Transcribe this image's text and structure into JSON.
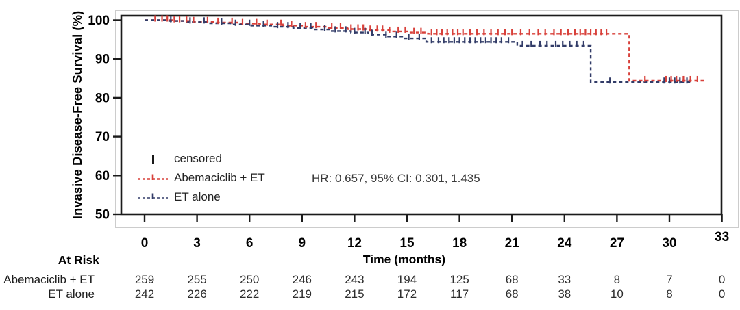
{
  "figure": {
    "y_axis_title": "Invasive Disease-Free Survival (%)",
    "x_axis_title": "Time (months)",
    "hr_annotation": "HR: 0.657, 95% CI: 0.301, 1.435",
    "legend": {
      "censored_label": "censored"
    },
    "at_risk": {
      "header": "At Risk"
    }
  },
  "chart_data": {
    "type": "line",
    "subtype": "kaplan_meier_step",
    "title": "",
    "xlabel": "Time (months)",
    "ylabel": "Invasive Disease-Free Survival (%)",
    "x_ticks": [
      0,
      3,
      6,
      9,
      12,
      15,
      18,
      21,
      24,
      27,
      30,
      33
    ],
    "y_ticks": [
      50,
      60,
      70,
      80,
      90,
      100
    ],
    "xlim": [
      -1.3,
      33
    ],
    "ylim": [
      50,
      101.5
    ],
    "grid": false,
    "legend_position": "inside lower-left",
    "annotation": "HR: 0.657, 95% CI: 0.301, 1.435",
    "series": [
      {
        "name": "Abemaciclib + ET",
        "color": "#d8403a",
        "line_style": "dashed",
        "steps": [
          [
            0,
            100
          ],
          [
            1.7,
            99.8
          ],
          [
            2.7,
            99.6
          ],
          [
            4,
            99.4
          ],
          [
            5.3,
            99.1
          ],
          [
            6.6,
            98.9
          ],
          [
            7.9,
            98.6
          ],
          [
            9.2,
            98.3
          ],
          [
            10.4,
            98.0
          ],
          [
            11.6,
            97.7
          ],
          [
            12.8,
            97.4
          ],
          [
            14,
            97.1
          ],
          [
            15.1,
            96.8
          ],
          [
            16.2,
            96.5
          ],
          [
            27.7,
            84.4
          ]
        ],
        "end_time": 32.0,
        "censor_times": [
          0.6,
          1.0,
          1.3,
          1.7,
          2.0,
          2.4,
          2.8,
          3.6,
          4.2,
          5.0,
          5.6,
          6.4,
          7.0,
          7.8,
          8.4,
          9.2,
          9.8,
          10.7,
          11.2,
          11.8,
          12.2,
          12.5,
          12.9,
          13.3,
          13.6,
          14.0,
          14.5,
          14.9,
          15.4,
          15.8,
          16.4,
          16.7,
          17.0,
          17.3,
          17.6,
          17.9,
          18.2,
          18.6,
          19.0,
          19.4,
          19.8,
          20.2,
          20.6,
          21.0,
          21.5,
          22.0,
          22.5,
          22.9,
          23.4,
          23.8,
          24.2,
          24.6,
          24.9,
          25.2,
          25.5,
          25.8,
          26.1,
          26.4,
          28.6,
          29.8,
          30.1,
          30.4,
          30.8,
          31.2,
          31.6
        ],
        "at_risk_counts": [
          259,
          255,
          250,
          246,
          243,
          194,
          125,
          68,
          33,
          8,
          7,
          0
        ]
      },
      {
        "name": "ET alone",
        "color": "#323c68",
        "line_style": "dashed",
        "steps": [
          [
            0,
            100
          ],
          [
            1.3,
            99.8
          ],
          [
            2.4,
            99.5
          ],
          [
            3.6,
            99.2
          ],
          [
            4.9,
            98.9
          ],
          [
            6.1,
            98.6
          ],
          [
            7.3,
            98.3
          ],
          [
            8.5,
            98.0
          ],
          [
            9.6,
            97.6
          ],
          [
            10.7,
            97.2
          ],
          [
            11.8,
            96.8
          ],
          [
            12.8,
            96.3
          ],
          [
            13.8,
            95.8
          ],
          [
            14.8,
            95.3
          ],
          [
            16.1,
            94.4
          ],
          [
            21.3,
            93.4
          ],
          [
            25.5,
            84.0
          ]
        ],
        "end_time": 31.2,
        "censor_times": [
          1.5,
          2.6,
          3.4,
          4.4,
          5.2,
          6.0,
          6.8,
          7.6,
          8.2,
          8.9,
          9.5,
          10.3,
          10.9,
          11.5,
          12.0,
          12.6,
          13.0,
          13.8,
          14.4,
          15.1,
          15.7,
          16.4,
          16.8,
          17.1,
          17.4,
          17.7,
          18.0,
          18.3,
          18.6,
          18.9,
          19.2,
          19.5,
          19.8,
          20.1,
          20.4,
          20.8,
          21.6,
          22.1,
          22.6,
          23.0,
          23.5,
          23.9,
          24.3,
          24.7,
          25.1,
          26.6,
          29.7,
          30.0,
          30.3,
          30.6,
          31.0
        ],
        "at_risk_counts": [
          242,
          226,
          222,
          219,
          215,
          172,
          117,
          68,
          38,
          10,
          8,
          0
        ]
      }
    ]
  }
}
